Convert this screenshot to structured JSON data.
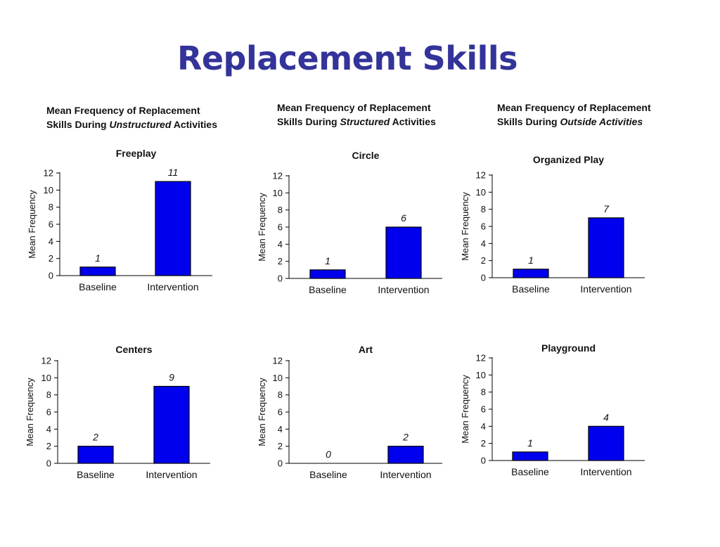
{
  "slide_title": "Replacement Skills",
  "captions": [
    {
      "line1": "Mean Frequency of Replacement",
      "line2_pre": "Skills During ",
      "line2_em": "Unstructured",
      "line2_post": " Activities"
    },
    {
      "line1": "Mean Frequency of Replacement",
      "line2_pre": "Skills During ",
      "line2_em": "Structured",
      "line2_post": " Activities"
    },
    {
      "line1": "Mean Frequency of Replacement",
      "line2_pre": "Skills During ",
      "line2_em": "Outside Activities",
      "line2_post": ""
    }
  ],
  "colors": {
    "bar": "#0000ee",
    "bar_stroke": "#000000",
    "title": "#333399"
  },
  "chart_data": [
    {
      "type": "bar",
      "title": "Freeplay",
      "categories": [
        "Baseline",
        "Intervention"
      ],
      "values": [
        1,
        11
      ],
      "ylabel": "Mean Frequency",
      "ylim": [
        0,
        12
      ],
      "yticks": [
        0,
        2,
        4,
        6,
        8,
        10,
        12
      ],
      "grid": false
    },
    {
      "type": "bar",
      "title": "Circle",
      "categories": [
        "Baseline",
        "Intervention"
      ],
      "values": [
        1,
        6
      ],
      "ylabel": "Mean Frequency",
      "ylim": [
        0,
        12
      ],
      "yticks": [
        0,
        2,
        4,
        6,
        8,
        10,
        12
      ],
      "grid": false
    },
    {
      "type": "bar",
      "title": "Organized Play",
      "categories": [
        "Baseline",
        "Intervention"
      ],
      "values": [
        1,
        7
      ],
      "ylabel": "Mean Frequency",
      "ylim": [
        0,
        12
      ],
      "yticks": [
        0,
        2,
        4,
        6,
        8,
        10,
        12
      ],
      "grid": false
    },
    {
      "type": "bar",
      "title": "Centers",
      "categories": [
        "Baseline",
        "Intervention"
      ],
      "values": [
        2,
        9
      ],
      "ylabel": "Mean Frequency",
      "ylim": [
        0,
        12
      ],
      "yticks": [
        0,
        2,
        4,
        6,
        8,
        10,
        12
      ],
      "grid": false
    },
    {
      "type": "bar",
      "title": "Art",
      "categories": [
        "Baseline",
        "Intervention"
      ],
      "values": [
        0,
        2
      ],
      "ylabel": "Mean Frequency",
      "ylim": [
        0,
        12
      ],
      "yticks": [
        0,
        2,
        4,
        6,
        8,
        10,
        12
      ],
      "grid": false
    },
    {
      "type": "bar",
      "title": "Playground",
      "categories": [
        "Baseline",
        "Intervention"
      ],
      "values": [
        1,
        4
      ],
      "ylabel": "Mean Frequency",
      "ylim": [
        0,
        12
      ],
      "yticks": [
        0,
        2,
        4,
        6,
        8,
        10,
        12
      ],
      "grid": false
    }
  ]
}
